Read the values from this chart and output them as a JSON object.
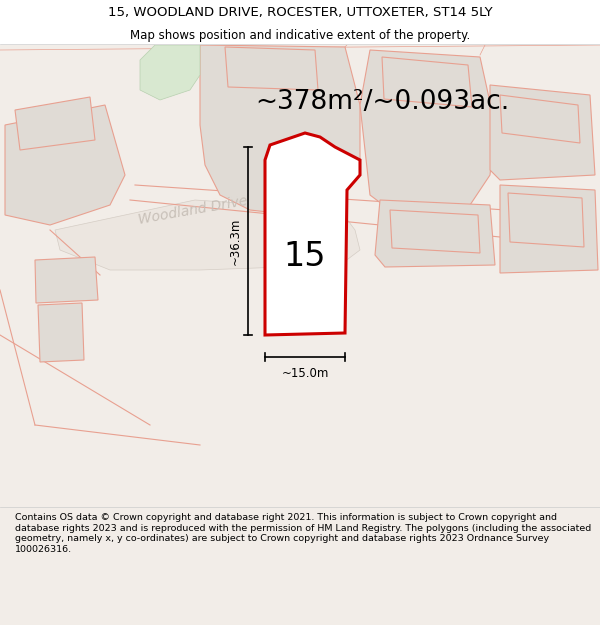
{
  "title_line1": "15, WOODLAND DRIVE, ROCESTER, UTTOXETER, ST14 5LY",
  "title_line2": "Map shows position and indicative extent of the property.",
  "area_text": "~378m²/~0.093ac.",
  "label_15": "15",
  "dim_vertical": "~36.3m",
  "dim_horizontal": "~15.0m",
  "road_label": "Woodland Drive",
  "footer_text": "Contains OS data © Crown copyright and database right 2021. This information is subject to Crown copyright and database rights 2023 and is reproduced with the permission of HM Land Registry. The polygons (including the associated geometry, namely x, y co-ordinates) are subject to Crown copyright and database rights 2023 Ordnance Survey 100026316.",
  "bg_color": "#f2ede8",
  "map_bg": "#f2ede8",
  "plot_fill": "#ffffff",
  "plot_stroke": "#cc0000",
  "neighbor_fill": "#e0dbd5",
  "neighbor_stroke": "#e8a090",
  "title_fontsize": 9.5,
  "subtitle_fontsize": 8.5,
  "area_fontsize": 19,
  "label_fontsize": 24,
  "dim_fontsize": 8.5,
  "road_fontsize": 10,
  "footer_fontsize": 6.8
}
